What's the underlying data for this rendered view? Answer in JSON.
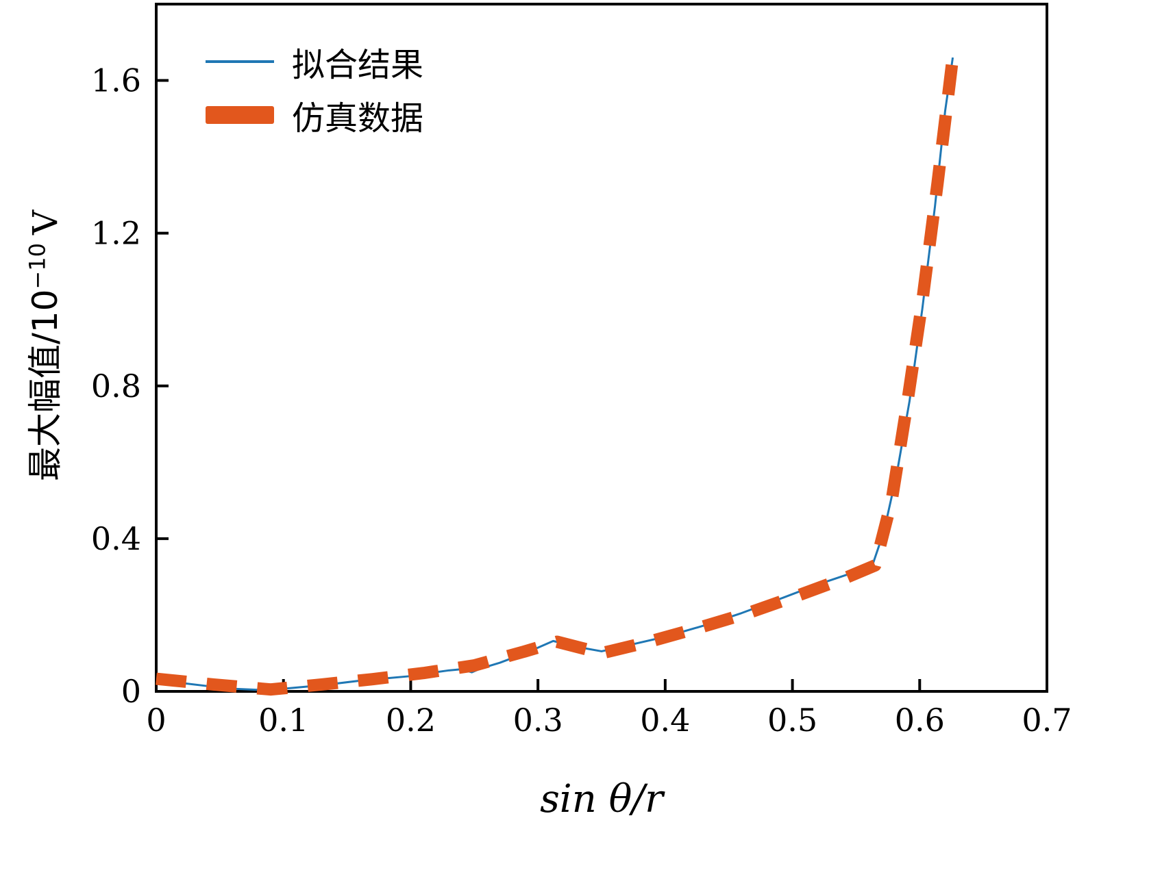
{
  "chart_data": {
    "type": "line",
    "title": "",
    "xlabel": "sin θ/r",
    "ylabel": "最大幅值/10⁻¹⁰ V",
    "ylabel_parts": {
      "base": "最大幅值/10",
      "sup": "−10",
      "unit": "V"
    },
    "xlim": [
      0,
      0.7
    ],
    "ylim": [
      0,
      1.8
    ],
    "xticks": [
      0,
      0.1,
      0.2,
      0.3,
      0.4,
      0.5,
      0.6,
      0.7
    ],
    "xtick_labels": [
      "0",
      "0.1",
      "0.2",
      "0.3",
      "0.4",
      "0.5",
      "0.6",
      "0.7"
    ],
    "yticks": [
      0,
      0.4,
      0.8,
      1.2,
      1.6
    ],
    "ytick_labels": [
      "0",
      "0.4",
      "0.8",
      "1.2",
      "1.6"
    ],
    "grid": false,
    "legend_position": "upper-left",
    "axis_color": "#000000",
    "series": [
      {
        "name": "拟合结果",
        "color": "#1f77b4",
        "line_style": "solid",
        "line_width": 3,
        "x": [
          0.0,
          0.02,
          0.04,
          0.06,
          0.08,
          0.1,
          0.12,
          0.14,
          0.16,
          0.18,
          0.2,
          0.215,
          0.23,
          0.24,
          0.248,
          0.255,
          0.27,
          0.29,
          0.312,
          0.33,
          0.35,
          0.37,
          0.4,
          0.43,
          0.46,
          0.49,
          0.52,
          0.545,
          0.562,
          0.572,
          0.582,
          0.592,
          0.602,
          0.612,
          0.62,
          0.626
        ],
        "y": [
          0.03,
          0.022,
          0.014,
          0.007,
          0.004,
          0.007,
          0.013,
          0.02,
          0.028,
          0.034,
          0.04,
          0.048,
          0.055,
          0.058,
          0.05,
          0.06,
          0.075,
          0.1,
          0.132,
          0.117,
          0.105,
          0.12,
          0.143,
          0.172,
          0.205,
          0.242,
          0.28,
          0.308,
          0.322,
          0.42,
          0.57,
          0.76,
          1.0,
          1.27,
          1.52,
          1.66
        ]
      },
      {
        "name": "仿真数据",
        "color": "#e2571d",
        "line_style": "dashed",
        "line_width": 18,
        "dash_pattern": "44 30",
        "x": [
          0.0,
          0.045,
          0.09,
          0.13,
          0.17,
          0.21,
          0.25,
          0.29,
          0.315,
          0.35,
          0.385,
          0.425,
          0.465,
          0.505,
          0.54,
          0.565,
          0.578,
          0.59,
          0.602,
          0.614,
          0.626
        ],
        "y": [
          0.033,
          0.018,
          0.005,
          0.018,
          0.032,
          0.048,
          0.068,
          0.105,
          0.13,
          0.1,
          0.128,
          0.165,
          0.205,
          0.252,
          0.295,
          0.33,
          0.5,
          0.75,
          1.02,
          1.33,
          1.66
        ]
      }
    ]
  }
}
